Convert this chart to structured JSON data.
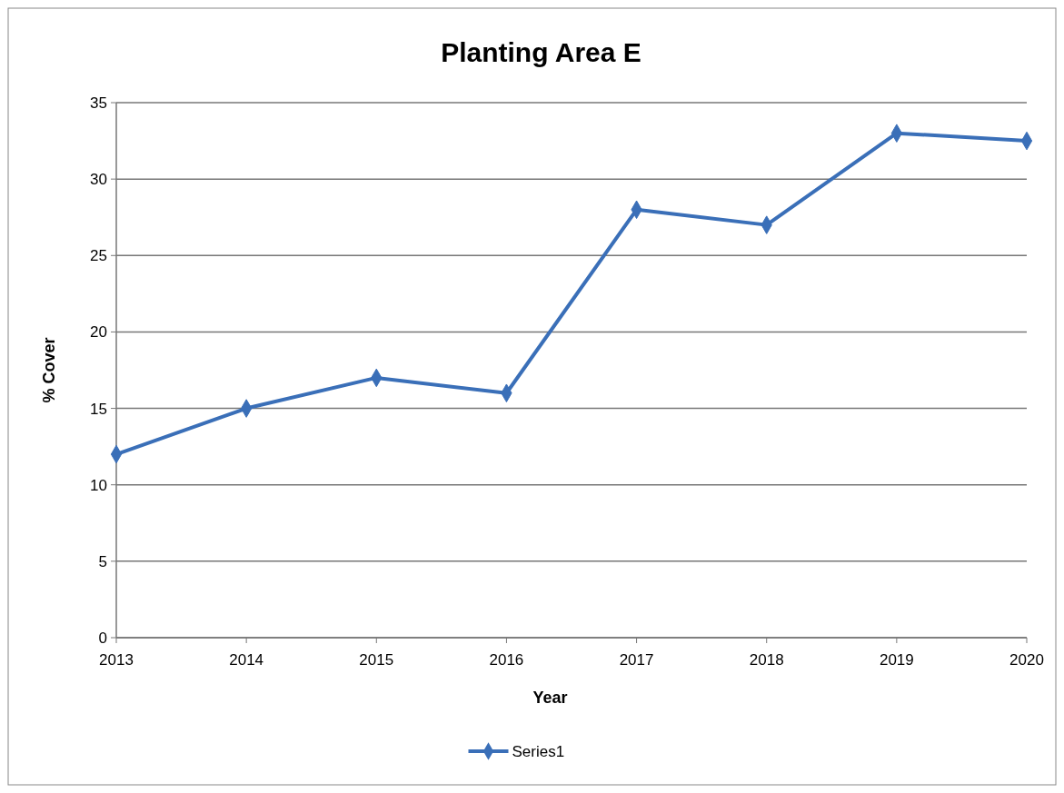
{
  "chart_data": {
    "type": "line",
    "title": "Planting Area E",
    "xlabel": "Year",
    "ylabel": "% Cover",
    "categories": [
      "2013",
      "2014",
      "2015",
      "2016",
      "2017",
      "2018",
      "2019",
      "2020"
    ],
    "series": [
      {
        "name": "Series1",
        "color": "#3a6fb8",
        "values": [
          12,
          15,
          17,
          16,
          28,
          27,
          33,
          32.5
        ]
      }
    ],
    "ylim": [
      0,
      35
    ],
    "yticks": [
      0,
      5,
      10,
      15,
      20,
      25,
      30,
      35
    ],
    "grid": "y",
    "legend": "bottom",
    "marker": "diamond",
    "line_style": "solid"
  }
}
